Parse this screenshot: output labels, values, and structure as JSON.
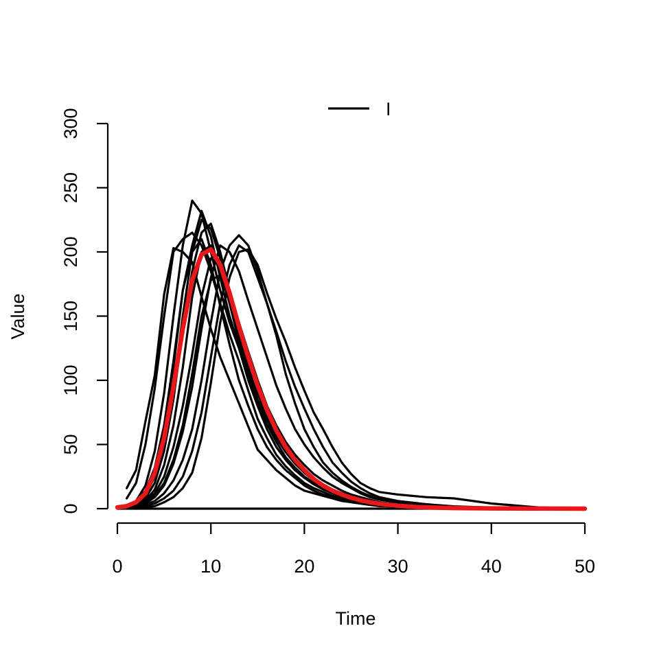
{
  "chart_data": {
    "type": "line",
    "title": "",
    "xlabel": "Time",
    "ylabel": "Value",
    "xlim": [
      0,
      50
    ],
    "ylim": [
      0,
      300
    ],
    "xticks": [
      0,
      10,
      20,
      30,
      40,
      50
    ],
    "yticks": [
      0,
      50,
      100,
      150,
      200,
      250,
      300
    ],
    "grid": false,
    "legend": {
      "position": "top",
      "entries": [
        {
          "label": "I",
          "color": "#000000"
        }
      ]
    },
    "colors": {
      "simulations": "#000000",
      "mean": "#e8191c"
    },
    "series": [
      {
        "x": [
          1,
          2,
          3,
          4,
          5,
          6,
          7,
          8,
          9,
          10,
          11,
          12,
          13,
          14,
          15,
          16,
          17,
          18,
          19,
          20,
          21,
          22,
          23,
          24,
          25,
          26,
          27,
          28,
          30,
          33,
          36,
          40,
          45,
          50
        ],
        "values": [
          16,
          30,
          68,
          104,
          167,
          203,
          200,
          192,
          165,
          140,
          118,
          100,
          82,
          64,
          46,
          38,
          30,
          24,
          18,
          14,
          12,
          10,
          8,
          6,
          5,
          4,
          3,
          2,
          1.5,
          1,
          0.5,
          0.3,
          0.1,
          0
        ]
      },
      {
        "x": [
          1,
          2,
          3,
          4,
          5,
          6,
          7,
          8,
          9,
          10,
          11,
          12,
          13,
          14,
          15,
          16,
          17,
          18,
          19,
          20,
          21,
          22,
          23,
          24,
          25,
          26,
          27,
          28,
          30,
          33,
          36,
          40,
          45,
          50
        ],
        "values": [
          8,
          20,
          50,
          94,
          150,
          200,
          210,
          215,
          205,
          185,
          160,
          136,
          115,
          92,
          70,
          55,
          42,
          33,
          26,
          20,
          16,
          13,
          10,
          8,
          6,
          5,
          4,
          3,
          2,
          1,
          0.6,
          0.3,
          0.1,
          0
        ]
      },
      {
        "x": [
          1,
          2,
          3,
          4,
          5,
          6,
          7,
          8,
          9,
          10,
          11,
          12,
          13,
          14,
          15,
          16,
          17,
          18,
          19,
          20,
          21,
          22,
          23,
          24,
          25,
          26,
          27,
          28,
          30,
          33,
          36,
          40,
          45,
          50
        ],
        "values": [
          2,
          6,
          18,
          45,
          90,
          150,
          205,
          240,
          230,
          200,
          170,
          145,
          125,
          100,
          80,
          62,
          48,
          38,
          30,
          24,
          19,
          15,
          12,
          9,
          7,
          5,
          4,
          3,
          2,
          1.2,
          0.6,
          0.3,
          0.1,
          0
        ]
      },
      {
        "x": [
          1,
          2,
          3,
          4,
          5,
          6,
          7,
          8,
          9,
          10,
          11,
          12,
          13,
          14,
          15,
          16,
          17,
          18,
          19,
          20,
          21,
          22,
          23,
          24,
          25,
          26,
          27,
          28,
          30,
          33,
          36,
          40,
          45,
          50
        ],
        "values": [
          1,
          4,
          12,
          30,
          60,
          110,
          170,
          205,
          232,
          212,
          180,
          150,
          126,
          105,
          84,
          66,
          52,
          40,
          32,
          25,
          20,
          16,
          12,
          10,
          8,
          6,
          4,
          3,
          2,
          1,
          0.6,
          0.3,
          0.1,
          0
        ]
      },
      {
        "x": [
          1,
          2,
          3,
          4,
          5,
          6,
          7,
          8,
          9,
          10,
          11,
          12,
          13,
          14,
          15,
          16,
          17,
          18,
          19,
          20,
          21,
          22,
          23,
          24,
          25,
          26,
          27,
          28,
          30,
          33,
          36,
          40,
          45,
          50
        ],
        "values": [
          1,
          3,
          10,
          25,
          52,
          95,
          150,
          200,
          225,
          218,
          195,
          160,
          130,
          108,
          85,
          70,
          55,
          44,
          35,
          28,
          22,
          18,
          14,
          11,
          8,
          6,
          5,
          4,
          2.5,
          1.5,
          0.8,
          0.4,
          0.1,
          0
        ]
      },
      {
        "x": [
          1,
          2,
          3,
          4,
          5,
          6,
          7,
          8,
          9,
          10,
          11,
          12,
          13,
          14,
          15,
          16,
          17,
          18,
          19,
          20,
          21,
          22,
          23,
          24,
          25,
          26,
          27,
          28,
          30,
          33,
          36,
          40,
          45,
          50
        ],
        "values": [
          1,
          3,
          8,
          20,
          45,
          85,
          140,
          185,
          215,
          222,
          200,
          170,
          140,
          115,
          92,
          72,
          56,
          45,
          36,
          28,
          22,
          18,
          14,
          11,
          9,
          7,
          5,
          4,
          3,
          1.5,
          0.8,
          0.4,
          0.1,
          0
        ]
      },
      {
        "x": [
          1,
          2,
          3,
          4,
          5,
          6,
          7,
          8,
          9,
          10,
          11,
          12,
          13,
          14,
          15,
          16,
          17,
          18,
          19,
          20,
          21,
          22,
          23,
          24,
          25,
          26,
          27,
          28,
          30,
          33,
          36,
          40,
          45,
          50
        ],
        "values": [
          1,
          2,
          6,
          15,
          34,
          65,
          110,
          165,
          200,
          205,
          185,
          160,
          135,
          112,
          90,
          72,
          57,
          46,
          37,
          30,
          24,
          19,
          15,
          12,
          10,
          8,
          6,
          5,
          3,
          2,
          1,
          0.5,
          0.1,
          0
        ]
      },
      {
        "x": [
          1,
          2,
          3,
          4,
          5,
          6,
          7,
          8,
          9,
          10,
          11,
          12,
          13,
          14,
          15,
          16,
          17,
          18,
          19,
          20,
          21,
          22,
          23,
          24,
          25,
          26,
          27,
          28,
          30,
          33,
          36,
          40,
          45,
          50
        ],
        "values": [
          1,
          2,
          5,
          12,
          25,
          48,
          80,
          120,
          165,
          195,
          190,
          170,
          145,
          122,
          100,
          80,
          65,
          52,
          42,
          34,
          27,
          22,
          18,
          14,
          11,
          9,
          7,
          5,
          3.5,
          2,
          1,
          0.5,
          0.1,
          0
        ]
      },
      {
        "x": [
          1,
          2,
          3,
          4,
          5,
          6,
          7,
          8,
          9,
          10,
          11,
          12,
          13,
          14,
          15,
          16,
          17,
          18,
          19,
          20,
          21,
          22,
          23,
          24,
          25,
          26,
          27,
          28,
          30,
          33,
          36,
          40,
          45,
          50
        ],
        "values": [
          1,
          2,
          4,
          9,
          18,
          35,
          60,
          95,
          140,
          180,
          205,
          200,
          185,
          162,
          140,
          118,
          96,
          78,
          62,
          50,
          40,
          32,
          25,
          20,
          16,
          12,
          9,
          7,
          5,
          3,
          1.5,
          0.7,
          0.2,
          0
        ]
      },
      {
        "x": [
          1,
          2,
          3,
          4,
          5,
          6,
          7,
          8,
          9,
          10,
          11,
          12,
          13,
          14,
          15,
          16,
          17,
          18,
          19,
          20,
          21,
          22,
          23,
          24,
          25,
          26,
          27,
          28,
          30,
          33,
          36,
          40,
          45,
          50
        ],
        "values": [
          0.5,
          1,
          3,
          6,
          12,
          22,
          38,
          62,
          100,
          145,
          185,
          205,
          213,
          205,
          185,
          160,
          135,
          105,
          82,
          62,
          48,
          36,
          28,
          22,
          17,
          13,
          10,
          8,
          5,
          3,
          1.5,
          0.7,
          0.2,
          0
        ]
      },
      {
        "x": [
          1,
          2,
          3,
          4,
          5,
          6,
          7,
          8,
          9,
          10,
          11,
          12,
          13,
          14,
          15,
          16,
          17,
          18,
          19,
          20,
          21,
          22,
          23,
          24,
          25,
          26,
          27,
          28,
          30,
          33,
          36,
          40,
          45,
          50
        ],
        "values": [
          0.5,
          1,
          2,
          4,
          8,
          14,
          25,
          45,
          75,
          118,
          160,
          190,
          205,
          200,
          180,
          160,
          138,
          115,
          95,
          78,
          62,
          48,
          36,
          28,
          21,
          16,
          12,
          9,
          6,
          3.5,
          1.8,
          0.8,
          0.2,
          0
        ]
      },
      {
        "x": [
          1,
          2,
          3,
          4,
          5,
          6,
          7,
          8,
          9,
          10,
          11,
          12,
          13,
          14,
          15,
          16,
          17,
          18,
          19,
          20,
          21,
          22,
          23,
          24,
          25,
          26,
          27,
          28,
          30,
          33,
          36,
          40,
          45,
          50
        ],
        "values": [
          0.2,
          0.5,
          1,
          2,
          5,
          9,
          16,
          28,
          55,
          98,
          145,
          180,
          200,
          202,
          190,
          168,
          148,
          130,
          110,
          92,
          75,
          62,
          48,
          36,
          27,
          20,
          16,
          13,
          11,
          9,
          8,
          4,
          1,
          0
        ]
      },
      {
        "x": [
          1,
          2,
          3,
          4,
          5,
          6,
          7,
          8,
          9,
          10,
          11,
          12,
          13,
          14,
          15,
          16,
          17,
          18,
          19,
          20,
          21,
          22,
          23,
          24,
          25,
          26,
          27,
          28,
          30,
          33,
          36,
          40,
          45,
          50
        ],
        "values": [
          1,
          2,
          5,
          10,
          20,
          38,
          65,
          105,
          150,
          178,
          182,
          165,
          145,
          122,
          100,
          80,
          62,
          48,
          37,
          28,
          22,
          17,
          13,
          10,
          8,
          6,
          4.5,
          3.5,
          2,
          1.2,
          0.6,
          0.3,
          0.1,
          0
        ]
      },
      {
        "x": [
          1,
          2,
          3,
          4,
          5,
          6,
          7,
          8,
          9,
          10,
          11,
          12,
          13,
          14,
          15,
          16,
          17,
          18,
          19,
          20,
          21,
          22,
          23,
          24,
          25,
          26,
          27,
          28,
          30,
          33,
          36,
          40,
          45,
          50
        ],
        "values": [
          2,
          5,
          14,
          32,
          65,
          115,
          170,
          200,
          210,
          190,
          158,
          128,
          100,
          80,
          62,
          48,
          38,
          30,
          24,
          18,
          14,
          11,
          9,
          7,
          5,
          4,
          3,
          2.5,
          1.5,
          0.8,
          0.4,
          0.2,
          0.1,
          0
        ]
      },
      {
        "x": [
          0,
          50
        ],
        "values": [
          0,
          0
        ]
      }
    ],
    "mean": {
      "x": [
        0,
        1,
        2,
        3,
        4,
        5,
        6,
        7,
        8,
        9,
        10,
        11,
        12,
        13,
        14,
        15,
        16,
        17,
        18,
        19,
        20,
        21,
        22,
        23,
        24,
        25,
        26,
        27,
        28,
        29,
        30,
        32,
        34,
        36,
        38,
        40,
        43,
        46,
        50
      ],
      "values": [
        1,
        2,
        5,
        12,
        28,
        55,
        95,
        140,
        178,
        198,
        202,
        190,
        168,
        142,
        118,
        96,
        77,
        61,
        48,
        38,
        30,
        23,
        18,
        14,
        11,
        8.5,
        6.5,
        5,
        3.8,
        3,
        2.3,
        1.3,
        0.8,
        0.5,
        0.3,
        0.2,
        0.1,
        0.05,
        0
      ]
    }
  }
}
